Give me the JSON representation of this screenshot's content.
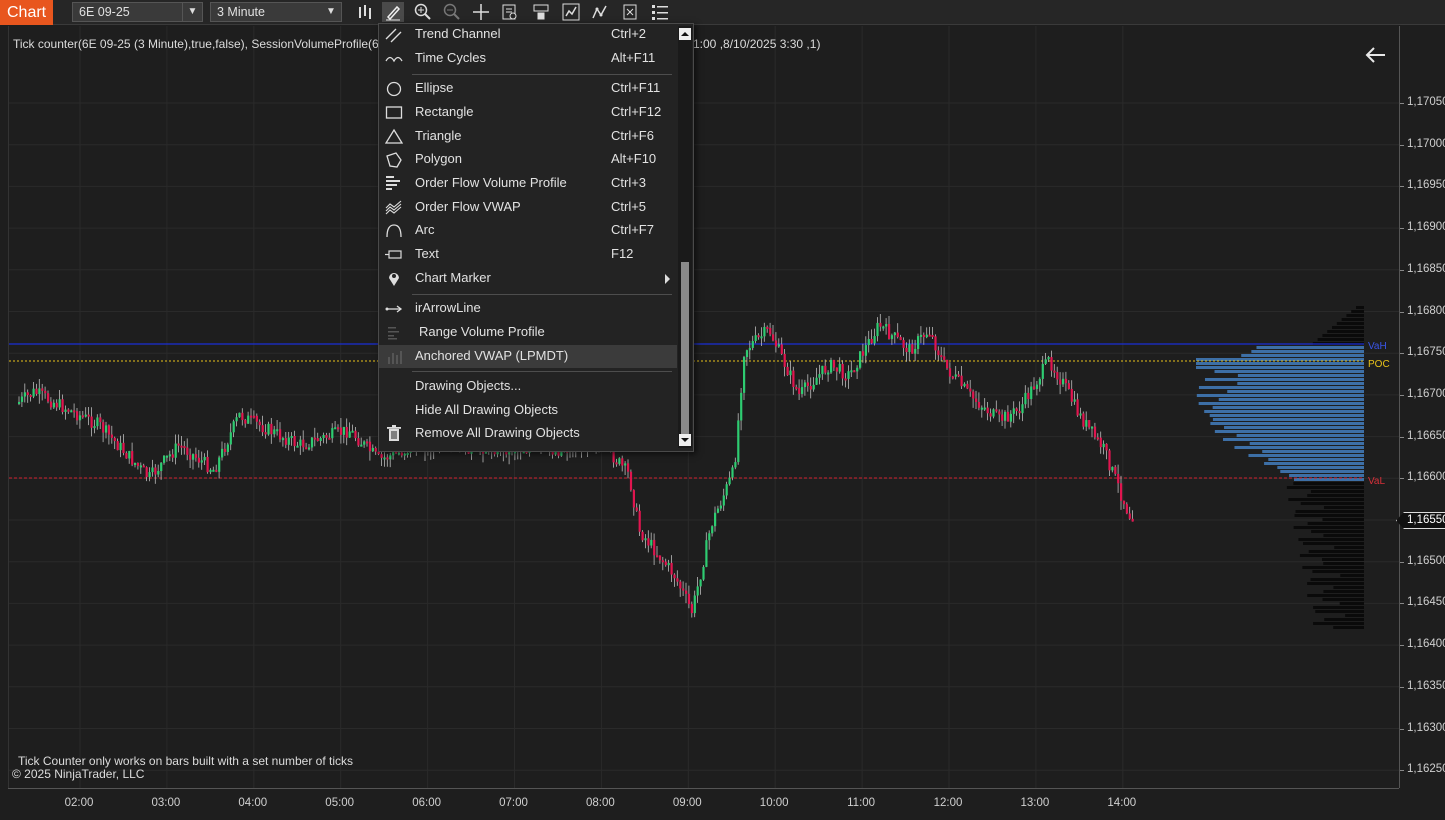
{
  "toolbar": {
    "chart_tab": "Chart",
    "instrument": "6E 09-25",
    "interval": "3 Minute"
  },
  "chart": {
    "indicator_label": "Tick counter(6E 09-25 (3 Minute),true,false), SessionVolumeProfile(6E 09-",
    "indicator_label_tail": "1:00 ,8/10/2025 3:30 ,1)",
    "footer_note": "Tick Counter only works on bars built with a set number of ticks",
    "copyright": "© 2025 NinjaTrader, LLC",
    "last_price": "1,16550",
    "levels": {
      "vah": "VaH",
      "poc": "POC",
      "val": "VaL"
    },
    "price_ticks": [
      "1,17050",
      "1,17000",
      "1,16950",
      "1,16900",
      "1,16850",
      "1,16800",
      "1,16750",
      "1,16700",
      "1,16650",
      "1,16600",
      "1,16550",
      "1,16500",
      "1,16450",
      "1,16400",
      "1,16350",
      "1,16300",
      "1,16250"
    ],
    "time_ticks": [
      "02:00",
      "03:00",
      "04:00",
      "05:00",
      "06:00",
      "07:00",
      "08:00",
      "09:00",
      "10:00",
      "11:00",
      "12:00",
      "13:00",
      "14:00"
    ],
    "colors": {
      "up": "#2ecc71",
      "down": "#e0154f",
      "vah_line": "#1a2fd6",
      "poc_line": "#e8c21a",
      "val_line": "#d02030",
      "profile": "#3d6fa6"
    }
  },
  "menu": {
    "items": [
      {
        "label": "Trend Channel",
        "shortcut": "Ctrl+2",
        "icon": "trend-channel-icon"
      },
      {
        "label": "Time Cycles",
        "shortcut": "Alt+F11",
        "icon": "time-cycles-icon"
      },
      {
        "label": "Ellipse",
        "shortcut": "Ctrl+F11",
        "icon": "ellipse-icon"
      },
      {
        "label": "Rectangle",
        "shortcut": "Ctrl+F12",
        "icon": "rectangle-icon"
      },
      {
        "label": "Triangle",
        "shortcut": "Ctrl+F6",
        "icon": "triangle-icon"
      },
      {
        "label": "Polygon",
        "shortcut": "Alt+F10",
        "icon": "polygon-icon"
      },
      {
        "label": "Order Flow Volume Profile",
        "shortcut": "Ctrl+3",
        "icon": "volume-profile-icon"
      },
      {
        "label": "Order Flow VWAP",
        "shortcut": "Ctrl+5",
        "icon": "vwap-icon"
      },
      {
        "label": "Arc",
        "shortcut": "Ctrl+F7",
        "icon": "arc-icon"
      },
      {
        "label": "Text",
        "shortcut": "F12",
        "icon": "text-icon"
      },
      {
        "label": "Chart Marker",
        "shortcut": "",
        "icon": "marker-pin-icon"
      },
      {
        "label": "irArrowLine",
        "shortcut": "",
        "icon": "arrow-line-icon"
      },
      {
        "label": "Range Volume Profile",
        "shortcut": "",
        "icon": "range-profile-icon"
      },
      {
        "label": "Anchored VWAP (LPMDT)",
        "shortcut": "",
        "icon": "anchored-vwap-icon"
      },
      {
        "label": "Drawing Objects...",
        "shortcut": "",
        "icon": ""
      },
      {
        "label": "Hide All Drawing Objects",
        "shortcut": "",
        "icon": ""
      },
      {
        "label": "Remove All Drawing Objects",
        "shortcut": "",
        "icon": "trash-icon"
      }
    ]
  }
}
